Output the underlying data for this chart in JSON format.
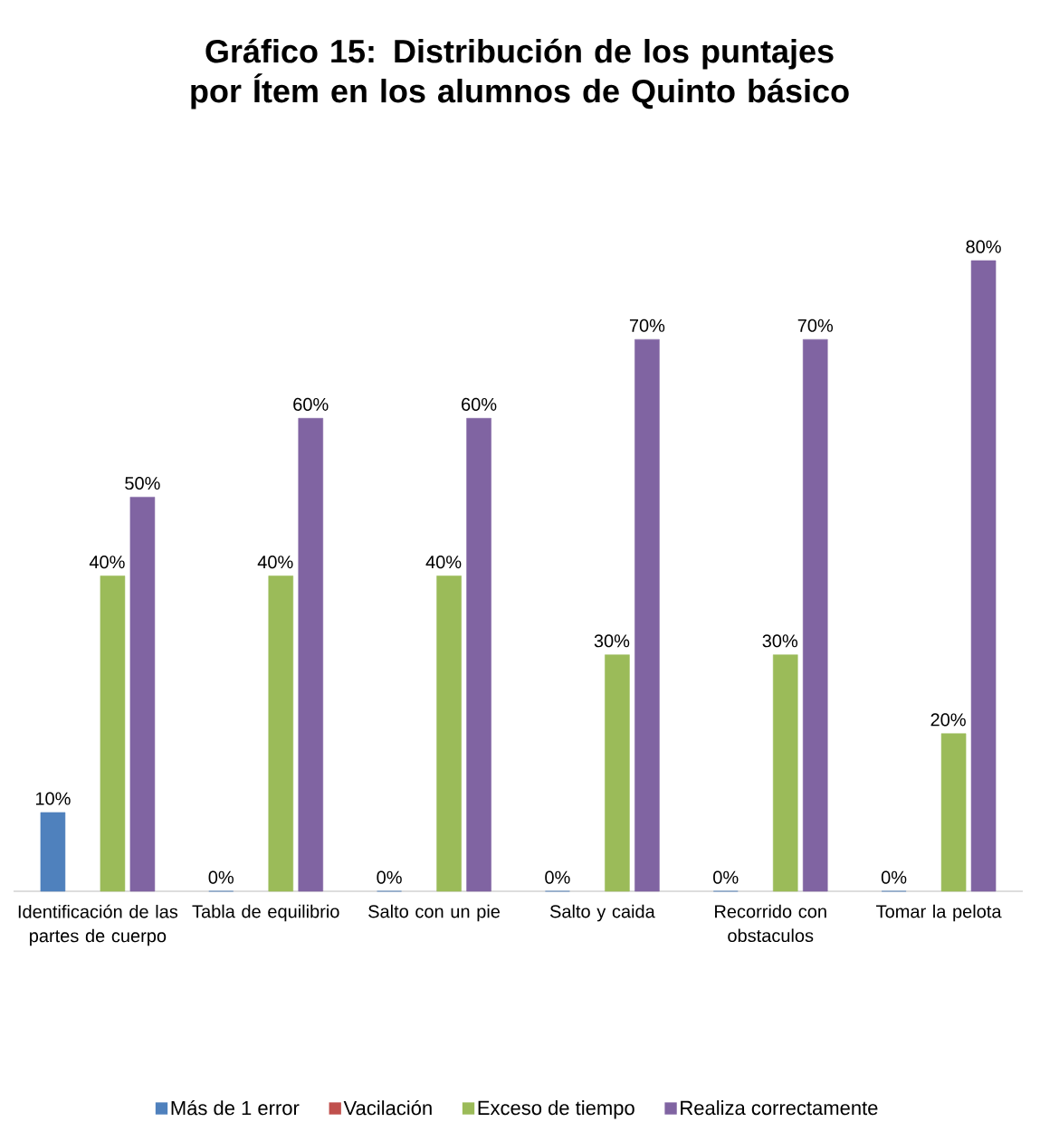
{
  "chart_data": {
    "type": "bar",
    "title": "**Gráfico 15: Distribución de los puntajes por Ítem en los alumnos de Quinto básico**",
    "categories": [
      "Identificación de las partes de cuerpo",
      "Tabla de equilibrio",
      "Salto con un pie",
      "Salto y caida",
      "Recorrido con obstaculos",
      "Tomar la pelota"
    ],
    "series": [
      {
        "name": "Más de 1 error",
        "color": "#4f81bd",
        "values": [
          10,
          0,
          0,
          0,
          0,
          0
        ],
        "value_labels": [
          "10%",
          "0%",
          "0%",
          "0%",
          "0%",
          "0%"
        ]
      },
      {
        "name": "Vacilación",
        "color": "#c0504d",
        "values": [
          null,
          null,
          null,
          null,
          null,
          null
        ]
      },
      {
        "name": "Exceso de tiempo",
        "color": "#9bbb59",
        "values": [
          40,
          40,
          40,
          30,
          30,
          20
        ],
        "value_labels": [
          "40%",
          "40%",
          "40%",
          "30%",
          "30%",
          "20%"
        ]
      },
      {
        "name": "Realiza correctamente",
        "color": "#8064a2",
        "values": [
          50,
          60,
          60,
          70,
          70,
          80
        ],
        "value_labels": [
          "50%",
          "60%",
          "60%",
          "70%",
          "70%",
          "80%"
        ]
      }
    ],
    "legend": "bottom",
    "grid": false
  }
}
